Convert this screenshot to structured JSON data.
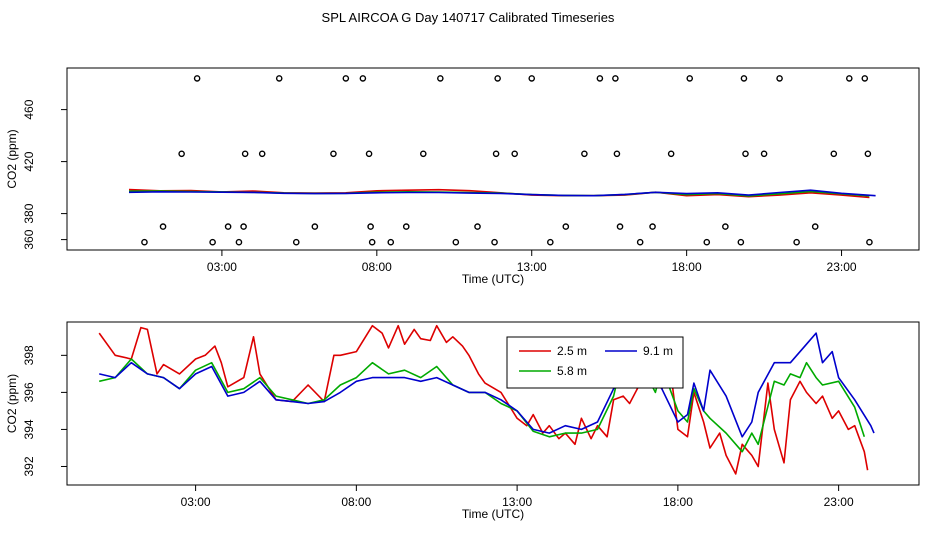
{
  "title": "SPL AIRCOA G  Day 140717  Calibrated Timeseries",
  "chart_data": [
    {
      "type": "line",
      "xlabel": "Time (UTC)",
      "ylabel": "CO2 (ppm)",
      "xlim": [
        -2,
        25.5
      ],
      "ylim": [
        352,
        492
      ],
      "xticks": [
        {
          "v": 3,
          "label": "03:00"
        },
        {
          "v": 8,
          "label": "08:00"
        },
        {
          "v": 13,
          "label": "13:00"
        },
        {
          "v": 18,
          "label": "18:00"
        },
        {
          "v": 23,
          "label": "23:00"
        }
      ],
      "yticks": [
        {
          "v": 360,
          "label": "360"
        },
        {
          "v": 380,
          "label": "380"
        },
        {
          "v": 420,
          "label": "420"
        },
        {
          "v": 460,
          "label": "460"
        }
      ],
      "series": [
        {
          "name": "2.5 m",
          "color": "#dd0000",
          "x": [
            0.0,
            1.0,
            2.0,
            3.0,
            4.0,
            5.0,
            6.0,
            7.0,
            8.0,
            9.0,
            10.0,
            11.0,
            12.0,
            13.0,
            14.0,
            15.0,
            16.0,
            17.0,
            18.0,
            19.0,
            20.0,
            21.0,
            22.0,
            23.0,
            23.9
          ],
          "y": [
            398.5,
            397.5,
            397.8,
            396.7,
            397.4,
            396.0,
            395.8,
            396.0,
            397.5,
            398.0,
            398.4,
            397.6,
            396.0,
            394.2,
            393.8,
            393.8,
            394.2,
            396.5,
            393.8,
            394.6,
            393.0,
            394.2,
            396.0,
            394.2,
            392.4
          ]
        },
        {
          "name": "5.8 m",
          "color": "#00aa00",
          "x": [
            0.0,
            1.0,
            2.0,
            3.0,
            4.0,
            5.0,
            6.0,
            7.0,
            8.0,
            9.0,
            10.0,
            11.0,
            12.0,
            13.0,
            14.0,
            15.0,
            16.0,
            17.0,
            18.0,
            19.0,
            20.0,
            21.0,
            22.0,
            23.0,
            23.9
          ],
          "y": [
            397.2,
            397.4,
            397.0,
            396.7,
            396.4,
            395.8,
            395.5,
            395.6,
            396.5,
            396.8,
            396.6,
            396.2,
            395.8,
            394.6,
            394.0,
            393.8,
            394.6,
            396.4,
            394.6,
            395.4,
            393.6,
            395.2,
            397.0,
            395.2,
            393.6
          ]
        },
        {
          "name": "9.1 m",
          "color": "#0000cc",
          "x": [
            0.0,
            1.0,
            2.0,
            3.0,
            4.0,
            5.0,
            6.0,
            7.0,
            8.0,
            9.0,
            10.0,
            11.0,
            12.0,
            13.0,
            14.0,
            15.0,
            16.0,
            17.0,
            18.0,
            19.0,
            20.0,
            21.0,
            22.0,
            23.0,
            24.1
          ],
          "y": [
            396.4,
            396.8,
            396.6,
            396.5,
            396.3,
            395.6,
            395.4,
            395.5,
            396.0,
            396.2,
            396.2,
            395.8,
            395.5,
            394.6,
            394.0,
            393.8,
            394.8,
            396.4,
            395.4,
            396.0,
            394.2,
            396.2,
            398.0,
            395.6,
            393.8
          ]
        }
      ],
      "flag_points": {
        "x": [
          0.5,
          1.1,
          1.7,
          2.2,
          2.7,
          3.2,
          3.55,
          3.7,
          3.75,
          4.3,
          4.85,
          5.4,
          6.0,
          6.6,
          7.0,
          7.55,
          7.75,
          7.8,
          7.85,
          8.45,
          8.95,
          9.5,
          10.05,
          10.55,
          11.25,
          11.8,
          11.85,
          11.9,
          12.45,
          13.0,
          13.6,
          14.1,
          14.7,
          15.2,
          15.7,
          15.75,
          15.85,
          16.5,
          16.9,
          17.5,
          18.1,
          18.65,
          19.25,
          19.75,
          19.85,
          19.9,
          20.5,
          21.0,
          21.55,
          22.15,
          22.75,
          23.25,
          23.75,
          23.85,
          23.9
        ],
        "y": [
          358,
          370,
          426,
          484,
          358,
          370,
          358,
          370,
          426,
          426,
          484,
          358,
          370,
          426,
          484,
          484,
          426,
          370,
          358,
          358,
          370,
          426,
          484,
          358,
          370,
          358,
          426,
          484,
          426,
          484,
          358,
          370,
          426,
          484,
          484,
          426,
          370,
          358,
          370,
          426,
          484,
          358,
          370,
          358,
          484,
          426,
          426,
          484,
          358,
          370,
          426,
          484,
          484,
          426,
          358
        ]
      }
    },
    {
      "type": "line",
      "xlabel": "Time (UTC)",
      "ylabel": "CO2 (ppm)",
      "xlim": [
        -1,
        25.5
      ],
      "ylim": [
        391,
        399.8
      ],
      "xticks": [
        {
          "v": 3,
          "label": "03:00"
        },
        {
          "v": 8,
          "label": "08:00"
        },
        {
          "v": 13,
          "label": "13:00"
        },
        {
          "v": 18,
          "label": "18:00"
        },
        {
          "v": 23,
          "label": "23:00"
        }
      ],
      "yticks": [
        {
          "v": 392,
          "label": "392"
        },
        {
          "v": 394,
          "label": "394"
        },
        {
          "v": 396,
          "label": "396"
        },
        {
          "v": 398,
          "label": "398"
        }
      ],
      "legend": {
        "position": "top-center",
        "entries": [
          "2.5 m",
          "5.8 m",
          "9.1 m"
        ]
      },
      "series": [
        {
          "name": "2.5 m",
          "color": "#dd0000",
          "x": [
            0.0,
            0.5,
            1.0,
            1.3,
            1.5,
            1.8,
            2.0,
            2.5,
            3.0,
            3.3,
            3.6,
            3.8,
            4.0,
            4.5,
            4.8,
            5.0,
            5.5,
            6.0,
            6.5,
            7.0,
            7.3,
            7.5,
            8.0,
            8.5,
            8.8,
            9.0,
            9.3,
            9.5,
            9.8,
            10.0,
            10.3,
            10.5,
            10.8,
            11.0,
            11.3,
            11.5,
            11.8,
            12.0,
            12.5,
            13.0,
            13.3,
            13.5,
            13.8,
            14.0,
            14.3,
            14.5,
            14.8,
            15.0,
            15.3,
            15.5,
            15.8,
            16.0,
            16.3,
            16.5,
            16.8,
            17.0,
            17.3,
            17.5,
            17.8,
            18.0,
            18.3,
            18.5,
            18.8,
            19.0,
            19.3,
            19.5,
            19.8,
            20.0,
            20.3,
            20.5,
            20.8,
            21.0,
            21.3,
            21.5,
            21.8,
            22.0,
            22.3,
            22.5,
            22.8,
            23.0,
            23.3,
            23.5,
            23.8,
            23.9
          ],
          "y": [
            399.2,
            398.0,
            397.8,
            399.5,
            399.4,
            397.0,
            397.5,
            397.0,
            397.8,
            398.0,
            398.5,
            397.6,
            396.3,
            396.8,
            399.0,
            397.0,
            395.6,
            395.5,
            396.4,
            395.5,
            398.0,
            398.0,
            398.2,
            399.6,
            399.2,
            398.4,
            399.6,
            398.6,
            399.4,
            398.9,
            398.8,
            399.6,
            398.7,
            399.0,
            398.5,
            398.0,
            397.0,
            396.5,
            396.0,
            394.6,
            394.2,
            394.8,
            393.8,
            394.2,
            393.5,
            393.8,
            393.2,
            394.6,
            393.5,
            394.2,
            393.6,
            395.6,
            395.8,
            395.4,
            396.4,
            398.2,
            396.6,
            396.2,
            396.8,
            394.0,
            393.6,
            396.0,
            394.4,
            393.0,
            393.8,
            392.6,
            391.6,
            393.2,
            392.6,
            392.0,
            396.5,
            394.0,
            392.2,
            395.6,
            396.6,
            396.0,
            395.4,
            395.8,
            394.6,
            395.0,
            394.0,
            394.2,
            392.8,
            391.8
          ]
        },
        {
          "name": "5.8 m",
          "color": "#00aa00",
          "x": [
            0.0,
            0.5,
            1.0,
            1.5,
            2.0,
            2.5,
            3.0,
            3.5,
            4.0,
            4.5,
            5.0,
            5.5,
            6.0,
            6.5,
            7.0,
            7.5,
            8.0,
            8.5,
            9.0,
            9.5,
            10.0,
            10.5,
            11.0,
            11.5,
            12.0,
            12.5,
            13.0,
            13.5,
            14.0,
            14.5,
            15.0,
            15.5,
            16.0,
            16.3,
            16.5,
            16.8,
            17.0,
            17.3,
            17.5,
            18.0,
            18.3,
            18.5,
            18.8,
            19.0,
            19.5,
            20.0,
            20.3,
            20.5,
            21.0,
            21.3,
            21.5,
            21.8,
            22.0,
            22.3,
            22.5,
            23.0,
            23.5,
            23.8
          ],
          "y": [
            396.6,
            396.8,
            397.8,
            397.0,
            396.8,
            396.2,
            397.2,
            397.6,
            396.0,
            396.2,
            396.8,
            395.8,
            395.6,
            395.4,
            395.6,
            396.4,
            396.8,
            397.6,
            397.0,
            397.2,
            396.8,
            397.4,
            396.4,
            396.0,
            396.0,
            395.4,
            395.0,
            393.9,
            393.6,
            393.8,
            393.8,
            394.0,
            395.8,
            398.0,
            396.8,
            396.6,
            397.0,
            396.0,
            397.4,
            395.0,
            394.4,
            396.2,
            395.0,
            394.6,
            393.8,
            392.8,
            393.8,
            393.2,
            396.6,
            396.4,
            397.0,
            396.8,
            397.6,
            396.8,
            396.4,
            396.6,
            395.2,
            393.6
          ]
        },
        {
          "name": "9.1 m",
          "color": "#0000cc",
          "x": [
            0.0,
            0.5,
            1.0,
            1.5,
            2.0,
            2.5,
            3.0,
            3.5,
            4.0,
            4.5,
            5.0,
            5.5,
            6.0,
            6.5,
            7.0,
            7.5,
            8.0,
            8.5,
            9.0,
            9.5,
            10.0,
            10.5,
            11.0,
            11.5,
            12.0,
            12.5,
            13.0,
            13.5,
            14.0,
            14.5,
            15.0,
            15.5,
            16.0,
            16.5,
            17.0,
            17.5,
            18.0,
            18.3,
            18.5,
            18.8,
            19.0,
            19.5,
            20.0,
            20.3,
            20.5,
            21.0,
            21.5,
            22.0,
            22.3,
            22.5,
            22.8,
            23.0,
            23.5,
            24.0,
            24.1
          ],
          "y": [
            397.0,
            396.8,
            397.6,
            397.0,
            396.8,
            396.2,
            397.0,
            397.4,
            395.8,
            396.0,
            396.6,
            395.6,
            395.5,
            395.4,
            395.5,
            396.0,
            396.6,
            396.8,
            396.8,
            396.8,
            396.6,
            396.8,
            396.4,
            396.0,
            396.0,
            395.6,
            395.0,
            394.0,
            393.8,
            394.2,
            394.0,
            394.4,
            396.2,
            396.8,
            397.8,
            396.2,
            394.4,
            394.8,
            396.5,
            395.0,
            397.2,
            395.8,
            393.6,
            394.4,
            396.0,
            397.6,
            397.6,
            398.6,
            399.2,
            397.6,
            398.2,
            396.8,
            395.6,
            394.2,
            393.8
          ]
        }
      ]
    }
  ]
}
